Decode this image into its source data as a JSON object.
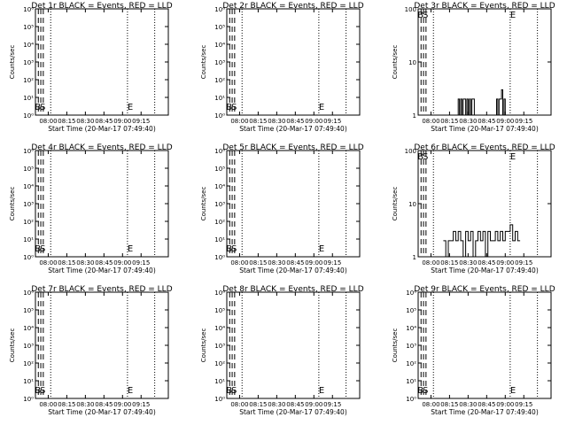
{
  "colors": {
    "events": "#000000",
    "lld": "#ff0000",
    "background": "#ffffff"
  },
  "chart_data": [
    {
      "type": "line",
      "title": "Det 1r BLACK = Events, RED = LLD",
      "ylabel": "Counts/sec",
      "xlabel": "Start Time (20-Mar-17 07:49:40)",
      "yscale": "log",
      "ylim": [
        1,
        1000000
      ],
      "ytick_labels": [
        "10⁰",
        "10¹",
        "10²",
        "10³",
        "10⁴",
        "10⁵",
        "10⁶"
      ],
      "xtick_labels": [
        "08:00",
        "08:15",
        "08:30",
        "08:45",
        "09:00",
        "09:15"
      ],
      "markers": [
        "B",
        "S",
        "E"
      ],
      "series": []
    },
    {
      "type": "line",
      "title": "Det 2r BLACK = Events, RED = LLD",
      "ylabel": "Counts/sec",
      "xlabel": "Start Time (20-Mar-17 07:49:40)",
      "yscale": "log",
      "ylim": [
        1,
        1000000
      ],
      "ytick_labels": [
        "10⁰",
        "10¹",
        "10²",
        "10³",
        "10⁴",
        "10⁵",
        "10⁶"
      ],
      "xtick_labels": [
        "08:00",
        "08:15",
        "08:30",
        "08:45",
        "09:00",
        "09:15"
      ],
      "markers": [
        "B",
        "S",
        "E"
      ],
      "series": []
    },
    {
      "type": "line",
      "title": "Det 3r BLACK = Events, RED = LLD",
      "ylabel": "Counts/sec",
      "xlabel": "Start Time (20-Mar-17 07:49:40)",
      "yscale": "log",
      "ylim": [
        1,
        100
      ],
      "ytick_labels": [
        "1",
        "10",
        "100"
      ],
      "xtick_labels": [
        "08:00",
        "08:15",
        "08:30",
        "08:45",
        "09:00",
        "09:15"
      ],
      "markers": [
        "B",
        "S",
        "E"
      ],
      "series": [
        {
          "x": [
            "08:21",
            "08:22",
            "08:23",
            "08:24",
            "08:25",
            "08:26",
            "08:27",
            "08:28",
            "08:29",
            "08:30",
            "08:31",
            "08:32",
            "08:33",
            "08:34",
            "08:35"
          ],
          "y": [
            1,
            2,
            1,
            2,
            1,
            2,
            2,
            1,
            2,
            1,
            2,
            1,
            2,
            2,
            1
          ]
        },
        {
          "x": [
            "08:52",
            "08:53",
            "08:54",
            "08:55",
            "08:56",
            "08:57",
            "08:58",
            "08:59",
            "09:00"
          ],
          "y": [
            1,
            2,
            1,
            2,
            2,
            3,
            1,
            2,
            1
          ]
        }
      ]
    },
    {
      "type": "line",
      "title": "Det 4r BLACK = Events, RED = LLD",
      "ylabel": "Counts/sec",
      "xlabel": "Start Time (20-Mar-17 07:49:40)",
      "yscale": "log",
      "ylim": [
        1,
        1000000
      ],
      "ytick_labels": [
        "10⁰",
        "10¹",
        "10²",
        "10³",
        "10⁴",
        "10⁵",
        "10⁶"
      ],
      "xtick_labels": [
        "08:00",
        "08:15",
        "08:30",
        "08:45",
        "09:00",
        "09:15"
      ],
      "markers": [
        "B",
        "S",
        "E"
      ],
      "series": []
    },
    {
      "type": "line",
      "title": "Det 5r BLACK = Events, RED = LLD",
      "ylabel": "Counts/sec",
      "xlabel": "Start Time (20-Mar-17 07:49:40)",
      "yscale": "log",
      "ylim": [
        1,
        1000000
      ],
      "ytick_labels": [
        "10⁰",
        "10¹",
        "10²",
        "10³",
        "10⁴",
        "10⁵",
        "10⁶"
      ],
      "xtick_labels": [
        "08:00",
        "08:15",
        "08:30",
        "08:45",
        "09:00",
        "09:15"
      ],
      "markers": [
        "B",
        "S",
        "E"
      ],
      "series": []
    },
    {
      "type": "line",
      "title": "Det 6r BLACK = Events, RED = LLD",
      "ylabel": "Counts/sec",
      "xlabel": "Start Time (20-Mar-17 07:49:40)",
      "yscale": "log",
      "ylim": [
        1,
        100
      ],
      "ytick_labels": [
        "1",
        "10",
        "100"
      ],
      "xtick_labels": [
        "08:00",
        "08:15",
        "08:30",
        "08:45",
        "09:00",
        "09:15"
      ],
      "markers": [
        "B",
        "S",
        "E"
      ],
      "series": [
        {
          "x": [
            "08:10",
            "08:12",
            "08:14",
            "08:16",
            "08:18",
            "08:20",
            "08:22",
            "08:24",
            "08:26",
            "08:28",
            "08:30",
            "08:32",
            "08:34",
            "08:36",
            "08:38",
            "08:40",
            "08:42",
            "08:44",
            "08:46",
            "08:48",
            "08:50",
            "08:52",
            "08:54",
            "08:56",
            "08:58",
            "09:00",
            "09:02",
            "09:04",
            "09:06",
            "09:08",
            "09:10",
            "09:12"
          ],
          "y": [
            2,
            1,
            2,
            2,
            3,
            2,
            3,
            2,
            1,
            3,
            2,
            3,
            1,
            2,
            3,
            2,
            3,
            1,
            3,
            2,
            2,
            3,
            2,
            3,
            2,
            3,
            3,
            4,
            2,
            3,
            2,
            2
          ]
        }
      ]
    },
    {
      "type": "line",
      "title": "Det 7r BLACK = Events, RED = LLD",
      "ylabel": "Counts/sec",
      "xlabel": "Start Time (20-Mar-17 07:49:40)",
      "yscale": "log",
      "ylim": [
        1,
        1000000
      ],
      "ytick_labels": [
        "10⁰",
        "10¹",
        "10²",
        "10³",
        "10⁴",
        "10⁵",
        "10⁶"
      ],
      "xtick_labels": [
        "08:00",
        "08:15",
        "08:30",
        "08:45",
        "09:00",
        "09:15"
      ],
      "markers": [
        "B",
        "S",
        "E"
      ],
      "series": []
    },
    {
      "type": "line",
      "title": "Det 8r BLACK = Events, RED = LLD",
      "ylabel": "Counts/sec",
      "xlabel": "Start Time (20-Mar-17 07:49:40)",
      "yscale": "log",
      "ylim": [
        1,
        1000000
      ],
      "ytick_labels": [
        "10⁰",
        "10¹",
        "10²",
        "10³",
        "10⁴",
        "10⁵",
        "10⁶"
      ],
      "xtick_labels": [
        "08:00",
        "08:15",
        "08:30",
        "08:45",
        "09:00",
        "09:15"
      ],
      "markers": [
        "B",
        "S",
        "E"
      ],
      "series": []
    },
    {
      "type": "line",
      "title": "Det 9r BLACK = Events, RED = LLD",
      "ylabel": "Counts/sec",
      "xlabel": "Start Time (20-Mar-17 07:49:40)",
      "yscale": "log",
      "ylim": [
        1,
        1000000
      ],
      "ytick_labels": [
        "10⁰",
        "10¹",
        "10²",
        "10³",
        "10⁴",
        "10⁵",
        "10⁶"
      ],
      "xtick_labels": [
        "08:00",
        "08:15",
        "08:30",
        "08:45",
        "09:00",
        "09:15"
      ],
      "markers": [
        "B",
        "S",
        "E"
      ],
      "series": []
    }
  ]
}
